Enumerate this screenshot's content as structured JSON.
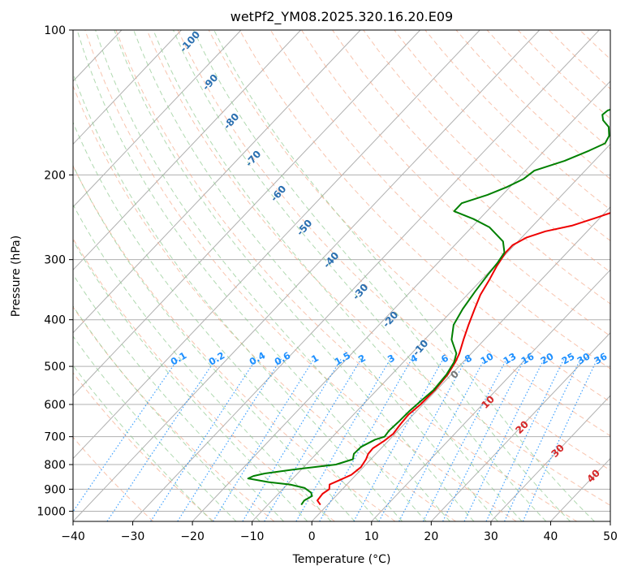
{
  "chart_data": {
    "type": "line",
    "title": "wetPf2_YM08.2025.320.16.20.E09",
    "xlabel": "Temperature (°C)",
    "ylabel": "Pressure (hPa)",
    "xlim": [
      -40,
      50
    ],
    "ylim": [
      1050,
      100
    ],
    "yscale": "log",
    "grid": true,
    "x_ticks": [
      "−40",
      "−30",
      "−20",
      "−10",
      "0",
      "10",
      "20",
      "30",
      "40",
      "50"
    ],
    "x_tick_values": [
      -40,
      -30,
      -20,
      -10,
      0,
      10,
      20,
      30,
      40,
      50
    ],
    "y_ticks": [
      "100",
      "200",
      "300",
      "400",
      "500",
      "600",
      "700",
      "800",
      "900",
      "1000"
    ],
    "y_tick_values": [
      100,
      200,
      300,
      400,
      500,
      600,
      700,
      800,
      900,
      1000
    ],
    "dry_adiabat_labels": [
      "-100",
      "-90",
      "-80",
      "-70",
      "-60",
      "-50",
      "-40",
      "-30",
      "-20",
      "-10"
    ],
    "mixing_ratio_labels": [
      "0.1",
      "0.2",
      "0.4",
      "0.6",
      "1",
      "1.5",
      "2",
      "3",
      "4",
      "6",
      "8",
      "10",
      "13",
      "16",
      "20",
      "25",
      "30",
      "36"
    ],
    "moist_adiabat_labels": [
      "0",
      "10",
      "20",
      "30",
      "40"
    ],
    "series": [
      {
        "color": "#ee0000",
        "points": [
          [
            -1.2,
            970
          ],
          [
            -2.4,
            950
          ],
          [
            -2.6,
            920
          ],
          [
            -2.2,
            900
          ],
          [
            -2.9,
            880
          ],
          [
            -1.8,
            860
          ],
          [
            -0.8,
            840
          ],
          [
            -0.4,
            810
          ],
          [
            -0.8,
            780
          ],
          [
            -1.3,
            760
          ],
          [
            -1.4,
            740
          ],
          [
            -0.7,
            715
          ],
          [
            -0.3,
            690
          ],
          [
            -0.6,
            660
          ],
          [
            -0.8,
            630
          ],
          [
            -0.4,
            600
          ],
          [
            -0.3,
            560
          ],
          [
            -0.6,
            520
          ],
          [
            -1.3,
            490
          ],
          [
            -2.0,
            470
          ],
          [
            -3.5,
            440
          ],
          [
            -5.0,
            410
          ],
          [
            -6.5,
            380
          ],
          [
            -7.8,
            355
          ],
          [
            -8.7,
            330
          ],
          [
            -9.6,
            310
          ],
          [
            -10.3,
            290
          ],
          [
            -10.3,
            280
          ],
          [
            -9.2,
            270
          ],
          [
            -7.0,
            262
          ],
          [
            -3.5,
            255
          ],
          [
            -0.5,
            245
          ],
          [
            3.0,
            233
          ],
          [
            6.5,
            220
          ],
          [
            9.5,
            208
          ],
          [
            12.5,
            196
          ],
          [
            15.0,
            186
          ],
          [
            17.0,
            178
          ],
          [
            20.5,
            169
          ],
          [
            25.0,
            159
          ],
          [
            30.0,
            148
          ],
          [
            35.0,
            138
          ],
          [
            40.0,
            128
          ],
          [
            45.0,
            118
          ],
          [
            49.5,
            108
          ],
          [
            54.5,
            100
          ]
        ]
      },
      {
        "color": "#008000",
        "points": [
          [
            -4.4,
            970
          ],
          [
            -4.6,
            950
          ],
          [
            -4.0,
            930
          ],
          [
            -4.7,
            915
          ],
          [
            -6.5,
            895
          ],
          [
            -9.5,
            880
          ],
          [
            -13.5,
            870
          ],
          [
            -17.5,
            855
          ],
          [
            -17.0,
            845
          ],
          [
            -15.5,
            835
          ],
          [
            -11.5,
            820
          ],
          [
            -5.0,
            800
          ],
          [
            -3.0,
            780
          ],
          [
            -3.7,
            760
          ],
          [
            -3.6,
            735
          ],
          [
            -2.4,
            710
          ],
          [
            -1.3,
            700
          ],
          [
            -1.5,
            680
          ],
          [
            -1.3,
            650
          ],
          [
            -1.2,
            620
          ],
          [
            -0.9,
            590
          ],
          [
            -0.5,
            560
          ],
          [
            -0.8,
            520
          ],
          [
            -1.5,
            490
          ],
          [
            -2.5,
            470
          ],
          [
            -5.5,
            440
          ],
          [
            -7.5,
            410
          ],
          [
            -8.5,
            380
          ],
          [
            -9.2,
            350
          ],
          [
            -9.7,
            325
          ],
          [
            -10.0,
            305
          ],
          [
            -10.5,
            290
          ],
          [
            -12.5,
            275
          ],
          [
            -17.0,
            257
          ],
          [
            -21.0,
            247
          ],
          [
            -25.5,
            238
          ],
          [
            -25.5,
            229
          ],
          [
            -22.5,
            220
          ],
          [
            -20.5,
            212
          ],
          [
            -19.0,
            204
          ],
          [
            -18.5,
            196
          ],
          [
            -15.0,
            187
          ],
          [
            -12.5,
            178
          ],
          [
            -11.0,
            172
          ],
          [
            -11.5,
            166
          ],
          [
            -13.0,
            159
          ],
          [
            -15.0,
            154
          ],
          [
            -16.0,
            150
          ],
          [
            -15.8,
            147
          ],
          [
            -14.0,
            143
          ],
          [
            -10.5,
            138
          ],
          [
            -8.0,
            133
          ],
          [
            -7.0,
            127
          ],
          [
            -6.0,
            120
          ],
          [
            -3.5,
            110
          ],
          [
            -1.0,
            100
          ]
        ]
      }
    ]
  }
}
